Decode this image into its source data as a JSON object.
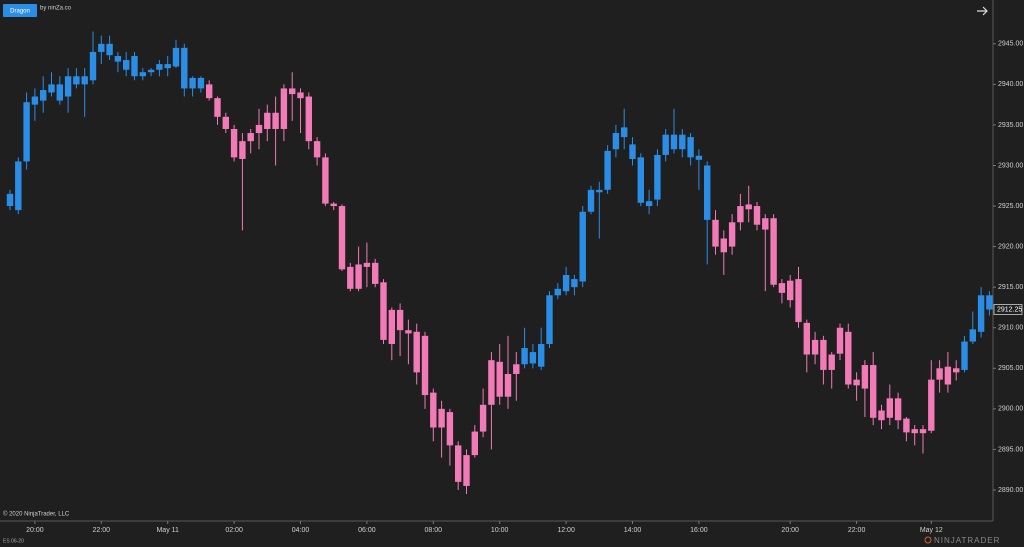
{
  "header": {
    "indicator": "Dragon",
    "credit": "by ninZa.co"
  },
  "footer": {
    "copyright": "© 2020 NinjaTrader, LLC",
    "instrument": "ES 06-20",
    "brand": "NINJATRADER"
  },
  "chart_data": {
    "type": "candlestick",
    "categories": [
      null,
      null,
      null,
      "20:00",
      null,
      null,
      null,
      null,
      null,
      null,
      null,
      "22:00",
      null,
      null,
      null,
      null,
      null,
      null,
      null,
      "May 11",
      null,
      null,
      null,
      null,
      null,
      null,
      null,
      "02:00",
      null,
      null,
      null,
      null,
      null,
      null,
      null,
      "04:00",
      null,
      null,
      null,
      null,
      null,
      null,
      null,
      "06:00",
      null,
      null,
      null,
      null,
      null,
      null,
      null,
      "08:00",
      null,
      null,
      null,
      null,
      null,
      null,
      null,
      "10:00",
      null,
      null,
      null,
      null,
      null,
      null,
      null,
      "12:00",
      null,
      null,
      null,
      null,
      null,
      null,
      null,
      "14:00",
      null,
      null,
      null,
      null,
      null,
      null,
      null,
      "16:00",
      null,
      null,
      null,
      null,
      null,
      null,
      null,
      null,
      null,
      null,
      "20:00",
      null,
      null,
      null,
      null,
      null,
      null,
      null,
      "22:00",
      null,
      null,
      null,
      null,
      null,
      null,
      null,
      null,
      "May 12",
      null,
      null,
      null,
      null,
      null,
      null,
      null
    ],
    "open": [
      2925,
      2924.5,
      2930.5,
      2937.5,
      2938,
      2939,
      2938,
      2938.5,
      2940,
      2940,
      2940.5,
      2944,
      2945,
      2943.5,
      2943,
      2943.5,
      2941.5,
      2941.5,
      2941.8,
      2942.5,
      2942.2,
      2944.5,
      2940.8,
      2939.5,
      2940,
      2938.3,
      2936,
      2934.5,
      2933,
      2933,
      2934,
      2934.5,
      2936.5,
      2934.5,
      2939.5,
      2939,
      2938.5,
      2933,
      2931,
      2925.3,
      2925,
      2917.5,
      2917.8,
      2918,
      2918,
      2915.6,
      2912.2,
      2912.2,
      2909.7,
      2909.5,
      2909,
      2902,
      2900,
      2899.6,
      2895.5,
      2894.3,
      2894.3,
      2897.2,
      2900.5,
      2905.8,
      2901.5,
      2904.3,
      2905.5,
      2907,
      2905.2,
      2908,
      2914,
      2914.5,
      2915,
      2915.7,
      2924.3,
      2927,
      2927,
      2932,
      2933.5,
      2932.6,
      2931,
      2925,
      2925.8,
      2931.3,
      2933.8,
      2932,
      2933.5,
      2931.2,
      2930,
      2923.3,
      2921,
      2920,
      2923,
      2925.2,
      2925,
      2923.5,
      2923.5,
      2915.5,
      2915.8,
      2916,
      2910.6,
      2908.5,
      2908.5,
      2906.7,
      2906.8,
      2909.5,
      2903.6,
      2905.4,
      2905.4,
      2899.8,
      2901.3,
      2901.3,
      2898.8,
      2897.5,
      2897,
      2897.3,
      2903.6,
      2905.2,
      2905,
      2904.8,
      2908.3,
      2909.5,
      2914
    ],
    "high": [
      2927,
      2931,
      2939,
      2939.5,
      2941,
      2941.5,
      2941,
      2942,
      2942,
      2942,
      2946.5,
      2946,
      2946,
      2944,
      2944,
      2944,
      2942,
      2942,
      2943,
      2943.5,
      2945.5,
      2945,
      2941,
      2941,
      2940.5,
      2938.5,
      2936.5,
      2935,
      2934,
      2934.5,
      2937,
      2937.5,
      2938.5,
      2940,
      2941.5,
      2939.5,
      2939,
      2933.5,
      2931.5,
      2925.5,
      2925.2,
      2918,
      2920,
      2920.5,
      2918.5,
      2916,
      2912.5,
      2913,
      2911,
      2910.5,
      2909.5,
      2902.5,
      2901,
      2900,
      2896,
      2895,
      2898,
      2902.5,
      2907,
      2908,
      2909,
      2907,
      2910,
      2908,
      2910,
      2914.5,
      2915.5,
      2917.5,
      2916.5,
      2925,
      2927.5,
      2928,
      2932.5,
      2935,
      2937,
      2933.5,
      2931.5,
      2927,
      2932,
      2934.5,
      2937,
      2934.5,
      2934,
      2932,
      2930.5,
      2924.5,
      2922,
      2924,
      2926.5,
      2927.5,
      2925.5,
      2924,
      2924,
      2916,
      2916.5,
      2917.5,
      2911,
      2909.5,
      2909,
      2907,
      2910.5,
      2910.5,
      2904.5,
      2906,
      2907,
      2900.5,
      2903,
      2902,
      2899,
      2898,
      2898,
      2906,
      2906,
      2907,
      2906,
      2909,
      2912,
      2915,
      2914.5
    ],
    "low": [
      2924.5,
      2924,
      2929.5,
      2935.5,
      2936.5,
      2938.5,
      2937.5,
      2936.5,
      2939.5,
      2936,
      2940,
      2942.5,
      2943,
      2941.5,
      2941,
      2940.5,
      2940.5,
      2941,
      2941,
      2941,
      2942,
      2938.5,
      2938.5,
      2939,
      2938,
      2935,
      2934,
      2930.5,
      2922,
      2931.5,
      2932,
      2933,
      2930,
      2933,
      2935.5,
      2934,
      2932,
      2930,
      2925,
      2924.5,
      2917,
      2914.5,
      2914.5,
      2915,
      2915,
      2908,
      2906,
      2906.5,
      2905.5,
      2903,
      2900,
      2896,
      2894,
      2893,
      2890,
      2889.5,
      2894,
      2896.5,
      2895,
      2900.5,
      2900,
      2901,
      2905,
      2905,
      2904.8,
      2907.5,
      2913.5,
      2914,
      2914,
      2915,
      2924,
      2921,
      2926.5,
      2931,
      2932,
      2930,
      2925,
      2924,
      2925,
      2930.5,
      2931.5,
      2931,
      2930,
      2927,
      2917.8,
      2919,
      2916.5,
      2919,
      2922,
      2923,
      2922,
      2914.5,
      2915,
      2913,
      2912.5,
      2910,
      2904.5,
      2905.5,
      2903,
      2902.5,
      2906,
      2902.5,
      2901,
      2899,
      2898,
      2897.5,
      2898,
      2897.5,
      2896,
      2895.5,
      2894.5,
      2897,
      2902,
      2902,
      2903.5,
      2904.5,
      2908,
      2908.8,
      2911.5
    ],
    "close": [
      2926.5,
      2930.5,
      2937.8,
      2938.5,
      2939.3,
      2940,
      2940,
      2941,
      2941,
      2941,
      2944,
      2945,
      2943.6,
      2942.8,
      2941.8,
      2941,
      2941,
      2941.8,
      2942.5,
      2942,
      2944.5,
      2939.5,
      2939.5,
      2940.8,
      2938.3,
      2936,
      2934.5,
      2931,
      2930.8,
      2934,
      2935,
      2936.5,
      2934.5,
      2939.5,
      2938.8,
      2938.3,
      2933,
      2931,
      2925.3,
      2925,
      2917.2,
      2914.8,
      2914.8,
      2917.5,
      2915.4,
      2908.5,
      2908,
      2909.7,
      2909.3,
      2904.5,
      2901.7,
      2897.7,
      2897.7,
      2895.5,
      2891,
      2890.5,
      2897.2,
      2900.5,
      2906,
      2901.5,
      2904.3,
      2905.5,
      2907.5,
      2905.6,
      2908,
      2914,
      2914.8,
      2916.5,
      2916,
      2924.3,
      2927,
      2926.7,
      2931.8,
      2934,
      2934.7,
      2930.8,
      2925.4,
      2925.6,
      2931.3,
      2933.8,
      2932,
      2933.8,
      2931,
      2930.7,
      2923.3,
      2920,
      2919.3,
      2923,
      2925,
      2924.6,
      2922.7,
      2922.1,
      2915.3,
      2914.3,
      2913.4,
      2910.7,
      2906.7,
      2906.7,
      2904.8,
      2904.8,
      2910,
      2903,
      2902.9,
      2902.5,
      2898.9,
      2898.6,
      2898.9,
      2898.6,
      2897.1,
      2897,
      2897.5,
      2903.6,
      2905,
      2903,
      2904.5,
      2908.3,
      2909.8,
      2914,
      2912.25
    ],
    "colors": [
      "#2b8ee6",
      "#2b8ee6",
      "#2b8ee6",
      "#2b8ee6",
      "#2b8ee6",
      "#2b8ee6",
      "#2b8ee6",
      "#2b8ee6",
      "#2b8ee6",
      "#2b8ee6",
      "#2b8ee6",
      "#2b8ee6",
      "#2b8ee6",
      "#2b8ee6",
      "#2b8ee6",
      "#2b8ee6",
      "#2b8ee6",
      "#2b8ee6",
      "#2b8ee6",
      "#2b8ee6",
      "#2b8ee6",
      "#2b8ee6",
      "#2b8ee6",
      "#2b8ee6",
      "#f27ab7",
      "#f27ab7",
      "#f27ab7",
      "#f27ab7",
      "#f27ab7",
      "#f27ab7",
      "#f27ab7",
      "#f27ab7",
      "#f27ab7",
      "#f27ab7",
      "#f27ab7",
      "#f27ab7",
      "#f27ab7",
      "#f27ab7",
      "#f27ab7",
      "#f27ab7",
      "#f27ab7",
      "#f27ab7",
      "#f27ab7",
      "#f27ab7",
      "#f27ab7",
      "#f27ab7",
      "#f27ab7",
      "#f27ab7",
      "#f27ab7",
      "#f27ab7",
      "#f27ab7",
      "#f27ab7",
      "#f27ab7",
      "#f27ab7",
      "#f27ab7",
      "#f27ab7",
      "#f27ab7",
      "#f27ab7",
      "#f27ab7",
      "#f27ab7",
      "#f27ab7",
      "#f27ab7",
      "#2b8ee6",
      "#2b8ee6",
      "#2b8ee6",
      "#2b8ee6",
      "#2b8ee6",
      "#2b8ee6",
      "#2b8ee6",
      "#2b8ee6",
      "#2b8ee6",
      "#2b8ee6",
      "#2b8ee6",
      "#2b8ee6",
      "#2b8ee6",
      "#2b8ee6",
      "#2b8ee6",
      "#2b8ee6",
      "#2b8ee6",
      "#2b8ee6",
      "#2b8ee6",
      "#2b8ee6",
      "#2b8ee6",
      "#2b8ee6",
      "#2b8ee6",
      "#f27ab7",
      "#f27ab7",
      "#f27ab7",
      "#f27ab7",
      "#f27ab7",
      "#f27ab7",
      "#f27ab7",
      "#f27ab7",
      "#f27ab7",
      "#f27ab7",
      "#f27ab7",
      "#f27ab7",
      "#f27ab7",
      "#f27ab7",
      "#f27ab7",
      "#f27ab7",
      "#f27ab7",
      "#f27ab7",
      "#f27ab7",
      "#f27ab7",
      "#f27ab7",
      "#f27ab7",
      "#f27ab7",
      "#f27ab7",
      "#f27ab7",
      "#f27ab7",
      "#f27ab7",
      "#f27ab7",
      "#f27ab7",
      "#f27ab7",
      "#2b8ee6",
      "#2b8ee6",
      "#2b8ee6",
      "#2b8ee6"
    ],
    "ylim": [
      2886.3,
      2950.4
    ],
    "yticks": [
      {
        "value": 2890,
        "label": "2890.00"
      },
      {
        "value": 2895,
        "label": "2895.00"
      },
      {
        "value": 2900,
        "label": "2900.00"
      },
      {
        "value": 2905,
        "label": "2905.00"
      },
      {
        "value": 2910,
        "label": "2910.00"
      },
      {
        "value": 2915,
        "label": "2915.00"
      },
      {
        "value": 2920,
        "label": "2920.00"
      },
      {
        "value": 2925,
        "label": "2925.00"
      },
      {
        "value": 2930,
        "label": "2930.00"
      },
      {
        "value": 2935,
        "label": "2935.00"
      },
      {
        "value": 2940,
        "label": "2940.00"
      },
      {
        "value": 2945,
        "label": "2945.00"
      }
    ],
    "last_price": {
      "value": 2912.25,
      "label": "2912.25"
    },
    "grid": false
  }
}
